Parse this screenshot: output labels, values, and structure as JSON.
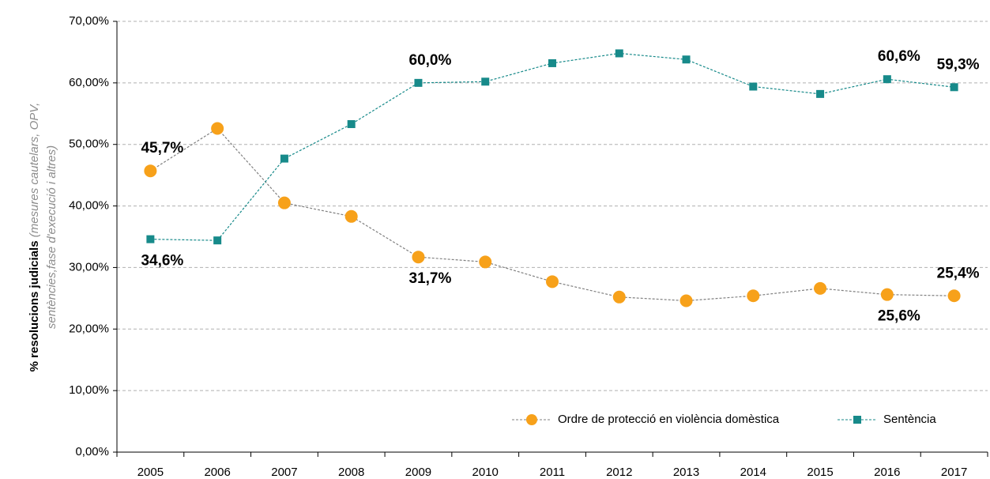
{
  "chart_data": {
    "type": "line",
    "y_label": [
      "% resolucions judicials",
      "(mesures cautelars, OPV,",
      "sentències,fase  d'execució i altres)"
    ],
    "categories": [
      "2005",
      "2006",
      "2007",
      "2008",
      "2009",
      "2010",
      "2011",
      "2012",
      "2013",
      "2014",
      "2015",
      "2016",
      "2017"
    ],
    "series": [
      {
        "name": "Ordre de protecció en violència domèstica",
        "color": "#f7a11a",
        "line_color": "#808080",
        "marker": "circle",
        "values": [
          45.7,
          52.6,
          40.5,
          38.3,
          31.7,
          30.9,
          27.7,
          25.2,
          24.6,
          25.4,
          26.6,
          25.6,
          25.4
        ],
        "value_labels": [
          "45,7%",
          null,
          null,
          null,
          "31,7%",
          null,
          null,
          null,
          null,
          null,
          null,
          "25,6%",
          "25,4%"
        ]
      },
      {
        "name": "Sentència",
        "color": "#178a8a",
        "line_color": "#178a8a",
        "marker": "square",
        "values": [
          34.6,
          34.4,
          47.7,
          53.3,
          60.0,
          60.2,
          63.2,
          64.8,
          63.8,
          59.4,
          58.2,
          60.6,
          59.3
        ],
        "value_labels": [
          "34,6%",
          null,
          null,
          null,
          "60,0%",
          null,
          null,
          null,
          null,
          null,
          null,
          "60,6%",
          "59,3%"
        ]
      }
    ],
    "ylim": [
      0,
      70
    ],
    "yticks": [
      {
        "value": 0,
        "label": "0,00%"
      },
      {
        "value": 10,
        "label": "10,00%"
      },
      {
        "value": 20,
        "label": "20,00%"
      },
      {
        "value": 30,
        "label": "30,00%"
      },
      {
        "value": 40,
        "label": "40,00%"
      },
      {
        "value": 50,
        "label": "50,00%"
      },
      {
        "value": 60,
        "label": "60,00%"
      },
      {
        "value": 70,
        "label": "70,00%"
      }
    ],
    "grid": true,
    "legend": "lower right"
  }
}
